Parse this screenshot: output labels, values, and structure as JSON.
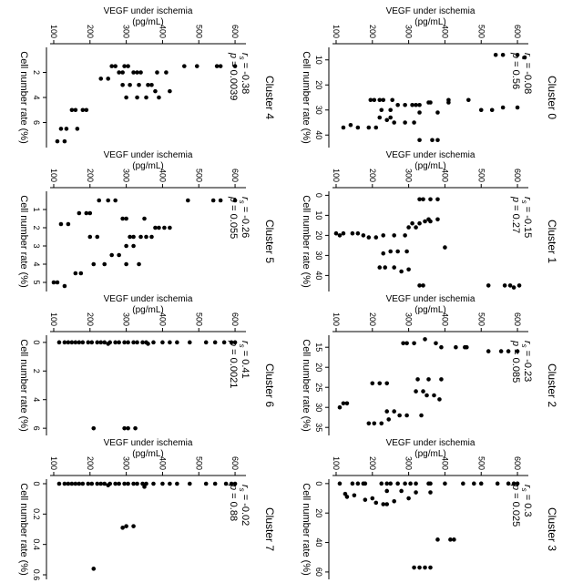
{
  "figure": {
    "ylabel_line1": "VEGF under ischemia",
    "ylabel_line2": "(pg/mL)",
    "xlabel": "Cell number rate (%)",
    "rs_symbol": "r",
    "rs_sub": "s"
  },
  "chart_data": [
    {
      "type": "scatter",
      "title": "Cluster 0",
      "rs": "-0.08",
      "p": "0.56",
      "xlim": [
        5,
        45
      ],
      "xticks": [
        10,
        20,
        30,
        40
      ],
      "ylim": [
        90,
        630
      ],
      "yticks": [
        100,
        200,
        300,
        400,
        500,
        600
      ],
      "points": [
        [
          8,
          600
        ],
        [
          8,
          560
        ],
        [
          8,
          540
        ],
        [
          9,
          620
        ],
        [
          29,
          600
        ],
        [
          29,
          560
        ],
        [
          30,
          530
        ],
        [
          30,
          500
        ],
        [
          26,
          465
        ],
        [
          26,
          410
        ],
        [
          27,
          410
        ],
        [
          27,
          360
        ],
        [
          27,
          355
        ],
        [
          28,
          330
        ],
        [
          28,
          310
        ],
        [
          28,
          320
        ],
        [
          28,
          290
        ],
        [
          28,
          270
        ],
        [
          26,
          255
        ],
        [
          26,
          230
        ],
        [
          26,
          220
        ],
        [
          26,
          205
        ],
        [
          26,
          195
        ],
        [
          30,
          250
        ],
        [
          30,
          225
        ],
        [
          31,
          380
        ],
        [
          31,
          330
        ],
        [
          33,
          250
        ],
        [
          33,
          220
        ],
        [
          35,
          315
        ],
        [
          35,
          290
        ],
        [
          35,
          260
        ],
        [
          34,
          240
        ],
        [
          42,
          380
        ],
        [
          42,
          365
        ],
        [
          42,
          330
        ],
        [
          37,
          210
        ],
        [
          37,
          190
        ],
        [
          37,
          160
        ],
        [
          36,
          140
        ],
        [
          37,
          120
        ]
      ]
    },
    {
      "type": "scatter",
      "title": "Cluster 1",
      "rs": "-0.15",
      "p": "0.27",
      "xlim": [
        -2,
        48
      ],
      "xticks": [
        0,
        10,
        20,
        30,
        40
      ],
      "ylim": [
        90,
        630
      ],
      "yticks": [
        100,
        200,
        300,
        400,
        500,
        600
      ],
      "points": [
        [
          45,
          605
        ],
        [
          45,
          580
        ],
        [
          45,
          565
        ],
        [
          45,
          520
        ],
        [
          46,
          590
        ],
        [
          2,
          380
        ],
        [
          2,
          360
        ],
        [
          2,
          340
        ],
        [
          2,
          330
        ],
        [
          12,
          380
        ],
        [
          12,
          355
        ],
        [
          13,
          360
        ],
        [
          13,
          345
        ],
        [
          14,
          330
        ],
        [
          14,
          310
        ],
        [
          16,
          320
        ],
        [
          16,
          300
        ],
        [
          28,
          295
        ],
        [
          28,
          270
        ],
        [
          36,
          260
        ],
        [
          36,
          235
        ],
        [
          36,
          220
        ],
        [
          20,
          290
        ],
        [
          20,
          260
        ],
        [
          20,
          230
        ],
        [
          21,
          210
        ],
        [
          21,
          190
        ],
        [
          20,
          175
        ],
        [
          19,
          160
        ],
        [
          19,
          145
        ],
        [
          19,
          120
        ],
        [
          20,
          110
        ],
        [
          19,
          100
        ],
        [
          45,
          340
        ],
        [
          45,
          330
        ],
        [
          37,
          300
        ],
        [
          38,
          280
        ],
        [
          28,
          250
        ],
        [
          29,
          230
        ],
        [
          26,
          400
        ]
      ]
    },
    {
      "type": "scatter",
      "title": "Cluster 2",
      "rs": "-0.23",
      "p": "0.085",
      "xlim": [
        12,
        37
      ],
      "xticks": [
        15,
        20,
        25,
        30,
        35
      ],
      "ylim": [
        90,
        630
      ],
      "yticks": [
        100,
        200,
        300,
        400,
        500,
        600
      ],
      "points": [
        [
          16,
          600
        ],
        [
          16,
          575
        ],
        [
          16,
          555
        ],
        [
          16,
          520
        ],
        [
          15,
          460
        ],
        [
          15,
          455
        ],
        [
          15,
          430
        ],
        [
          15,
          390
        ],
        [
          14,
          375
        ],
        [
          13,
          345
        ],
        [
          14,
          315
        ],
        [
          14,
          295
        ],
        [
          14,
          285
        ],
        [
          28,
          385
        ],
        [
          27,
          370
        ],
        [
          27,
          350
        ],
        [
          26,
          340
        ],
        [
          26,
          320
        ],
        [
          23,
          390
        ],
        [
          23,
          355
        ],
        [
          23,
          325
        ],
        [
          32,
          335
        ],
        [
          32,
          295
        ],
        [
          32,
          275
        ],
        [
          31,
          260
        ],
        [
          31,
          240
        ],
        [
          33,
          245
        ],
        [
          34,
          225
        ],
        [
          34,
          205
        ],
        [
          34,
          190
        ],
        [
          24,
          240
        ],
        [
          24,
          220
        ],
        [
          24,
          200
        ],
        [
          29,
          130
        ],
        [
          29,
          120
        ],
        [
          30,
          110
        ]
      ]
    },
    {
      "type": "scatter",
      "title": "Cluster 3",
      "rs": "0.3",
      "p": "0.025",
      "xlim": [
        -3,
        65
      ],
      "xticks": [
        0,
        20,
        40,
        60
      ],
      "ylim": [
        90,
        630
      ],
      "yticks": [
        100,
        200,
        300,
        400,
        500,
        600
      ],
      "points": [
        [
          0,
          600
        ],
        [
          0,
          590
        ],
        [
          0,
          575
        ],
        [
          0,
          545
        ],
        [
          0,
          500
        ],
        [
          0,
          480
        ],
        [
          0,
          450
        ],
        [
          0,
          400
        ],
        [
          0,
          360
        ],
        [
          0,
          355
        ],
        [
          0,
          320
        ],
        [
          0,
          305
        ],
        [
          0,
          290
        ],
        [
          0,
          270
        ],
        [
          0,
          250
        ],
        [
          0,
          240
        ],
        [
          0,
          225
        ],
        [
          0,
          180
        ],
        [
          0,
          175
        ],
        [
          0,
          160
        ],
        [
          0,
          145
        ],
        [
          0,
          110
        ],
        [
          6,
          360
        ],
        [
          6,
          320
        ],
        [
          5,
          280
        ],
        [
          5,
          240
        ],
        [
          10,
          300
        ],
        [
          12,
          260
        ],
        [
          14,
          240
        ],
        [
          14,
          230
        ],
        [
          13,
          210
        ],
        [
          10,
          200
        ],
        [
          11,
          180
        ],
        [
          8,
          150
        ],
        [
          9,
          130
        ],
        [
          7,
          125
        ],
        [
          38,
          425
        ],
        [
          38,
          415
        ],
        [
          38,
          380
        ],
        [
          57,
          360
        ],
        [
          57,
          345
        ],
        [
          57,
          330
        ],
        [
          57,
          315
        ]
      ]
    },
    {
      "type": "scatter",
      "title": "Cluster 4",
      "rs": "-0.38",
      "p": "0.0039",
      "xlim": [
        0,
        8
      ],
      "xticks": [
        2,
        4,
        6
      ],
      "ylim": [
        90,
        630
      ],
      "yticks": [
        100,
        200,
        300,
        400,
        500,
        600
      ],
      "points": [
        [
          1.5,
          600
        ],
        [
          1.5,
          560
        ],
        [
          1.5,
          550
        ],
        [
          1.5,
          495
        ],
        [
          1.5,
          460
        ],
        [
          2,
          410
        ],
        [
          2,
          385
        ],
        [
          2,
          340
        ],
        [
          2,
          330
        ],
        [
          2,
          320
        ],
        [
          1.5,
          305
        ],
        [
          1.5,
          295
        ],
        [
          2,
          290
        ],
        [
          2,
          280
        ],
        [
          1.5,
          270
        ],
        [
          1.5,
          260
        ],
        [
          3,
          370
        ],
        [
          3,
          360
        ],
        [
          3,
          335
        ],
        [
          3,
          310
        ],
        [
          3,
          290
        ],
        [
          4,
          390
        ],
        [
          4,
          355
        ],
        [
          4,
          330
        ],
        [
          4,
          300
        ],
        [
          3.5,
          420
        ],
        [
          3.5,
          380
        ],
        [
          2.5,
          250
        ],
        [
          2.5,
          230
        ],
        [
          5,
          190
        ],
        [
          5,
          180
        ],
        [
          5,
          160
        ],
        [
          5,
          150
        ],
        [
          6.5,
          165
        ],
        [
          6.5,
          135
        ],
        [
          6.5,
          120
        ],
        [
          7.5,
          130
        ],
        [
          7.5,
          110
        ]
      ]
    },
    {
      "type": "scatter",
      "title": "Cluster 5",
      "rs": "-0.26",
      "p": "0.055",
      "xlim": [
        0,
        5.5
      ],
      "xticks": [
        1,
        2,
        3,
        4,
        5
      ],
      "ylim": [
        90,
        630
      ],
      "yticks": [
        100,
        200,
        300,
        400,
        500,
        600
      ],
      "points": [
        [
          0.5,
          600
        ],
        [
          0.5,
          560
        ],
        [
          0.5,
          540
        ],
        [
          0.5,
          470
        ],
        [
          2,
          420
        ],
        [
          2,
          405
        ],
        [
          2,
          390
        ],
        [
          2,
          380
        ],
        [
          2.5,
          370
        ],
        [
          2.5,
          355
        ],
        [
          2.5,
          340
        ],
        [
          2.5,
          320
        ],
        [
          2.5,
          310
        ],
        [
          1.5,
          350
        ],
        [
          1.5,
          300
        ],
        [
          1.5,
          290
        ],
        [
          0.5,
          270
        ],
        [
          0.5,
          250
        ],
        [
          0.5,
          225
        ],
        [
          1.2,
          200
        ],
        [
          1.2,
          190
        ],
        [
          1.2,
          170
        ],
        [
          3,
          320
        ],
        [
          3,
          300
        ],
        [
          3.5,
          280
        ],
        [
          3.5,
          260
        ],
        [
          4,
          335
        ],
        [
          4,
          300
        ],
        [
          4,
          240
        ],
        [
          4,
          210
        ],
        [
          4.5,
          175
        ],
        [
          4.5,
          160
        ],
        [
          2.5,
          220
        ],
        [
          2.5,
          200
        ],
        [
          1.8,
          140
        ],
        [
          1.8,
          120
        ],
        [
          5,
          110
        ],
        [
          5,
          100
        ],
        [
          5.2,
          130
        ]
      ]
    },
    {
      "type": "scatter",
      "title": "Cluster 6",
      "rs": "0.41",
      "p": "0.0021",
      "xlim": [
        -0.5,
        6.5
      ],
      "xticks": [
        0,
        2,
        4,
        6
      ],
      "ylim": [
        90,
        630
      ],
      "yticks": [
        100,
        200,
        300,
        400,
        500,
        600
      ],
      "points": [
        [
          0,
          600
        ],
        [
          0,
          590
        ],
        [
          0,
          570
        ],
        [
          0,
          545
        ],
        [
          0,
          520
        ],
        [
          0,
          475
        ],
        [
          0,
          440
        ],
        [
          0,
          420
        ],
        [
          0,
          400
        ],
        [
          0,
          375
        ],
        [
          0,
          355
        ],
        [
          0,
          345
        ],
        [
          0,
          330
        ],
        [
          0,
          320
        ],
        [
          0,
          305
        ],
        [
          0,
          295
        ],
        [
          0,
          280
        ],
        [
          0,
          270
        ],
        [
          0,
          255
        ],
        [
          0,
          240
        ],
        [
          0,
          230
        ],
        [
          0,
          220
        ],
        [
          0,
          205
        ],
        [
          0,
          195
        ],
        [
          0,
          180
        ],
        [
          0,
          170
        ],
        [
          0,
          160
        ],
        [
          0,
          150
        ],
        [
          0,
          140
        ],
        [
          0,
          130
        ],
        [
          0,
          115
        ],
        [
          0.1,
          360
        ],
        [
          0.1,
          250
        ],
        [
          6,
          325
        ],
        [
          6,
          305
        ],
        [
          6,
          295
        ],
        [
          6,
          210
        ]
      ]
    },
    {
      "type": "scatter",
      "title": "Cluster 7",
      "rs": "-0.02",
      "p": "0.88",
      "xlim": [
        -0.03,
        0.63
      ],
      "xticks": [
        0,
        0.2,
        0.4,
        0.6
      ],
      "ylim": [
        90,
        630
      ],
      "yticks": [
        100,
        200,
        300,
        400,
        500,
        600
      ],
      "points": [
        [
          0,
          600
        ],
        [
          0,
          590
        ],
        [
          0,
          575
        ],
        [
          0,
          545
        ],
        [
          0,
          520
        ],
        [
          0,
          475
        ],
        [
          0,
          440
        ],
        [
          0,
          420
        ],
        [
          0,
          400
        ],
        [
          0,
          375
        ],
        [
          0,
          355
        ],
        [
          0,
          345
        ],
        [
          0,
          330
        ],
        [
          0,
          320
        ],
        [
          0,
          305
        ],
        [
          0,
          295
        ],
        [
          0,
          280
        ],
        [
          0,
          270
        ],
        [
          0,
          255
        ],
        [
          0,
          240
        ],
        [
          0,
          230
        ],
        [
          0,
          220
        ],
        [
          0,
          205
        ],
        [
          0,
          195
        ],
        [
          0,
          180
        ],
        [
          0,
          170
        ],
        [
          0,
          160
        ],
        [
          0,
          150
        ],
        [
          0,
          140
        ],
        [
          0,
          130
        ],
        [
          0,
          115
        ],
        [
          0.02,
          350
        ],
        [
          0.01,
          250
        ],
        [
          0.28,
          320
        ],
        [
          0.28,
          300
        ],
        [
          0.29,
          290
        ],
        [
          0.56,
          210
        ]
      ]
    }
  ]
}
